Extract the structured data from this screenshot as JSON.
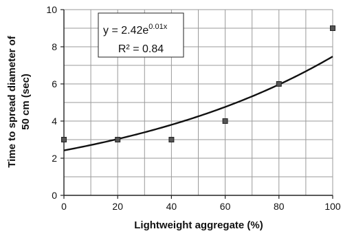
{
  "chart_data": {
    "type": "scatter",
    "xlabel": "Lightweight aggregate (%)",
    "ylabel_line1": "Time to spread diameter of",
    "ylabel_line2": "50 cm (sec)",
    "xlim": [
      0,
      100
    ],
    "ylim": [
      0,
      10
    ],
    "x_ticks": [
      0,
      20,
      40,
      60,
      80,
      100
    ],
    "y_ticks": [
      0,
      2,
      4,
      6,
      8,
      10
    ],
    "x_minor_step": 10,
    "y_minor_step": 1,
    "grid": true,
    "points": [
      {
        "x": 0,
        "y": 3
      },
      {
        "x": 20,
        "y": 3
      },
      {
        "x": 40,
        "y": 3
      },
      {
        "x": 60,
        "y": 4
      },
      {
        "x": 80,
        "y": 6
      },
      {
        "x": 100,
        "y": 9
      }
    ],
    "trendline": {
      "type": "exponential",
      "a": 2.42,
      "b": 0.01128
    },
    "equation": {
      "prefix": "y = 2.42e",
      "exponent": "0.01x",
      "r_squared": "R² = 0.84"
    },
    "colors": {
      "marker": "#555555",
      "marker_stroke": "#222222",
      "line": "#111111",
      "grid": "#9a9a9a",
      "axis": "#222222"
    }
  }
}
